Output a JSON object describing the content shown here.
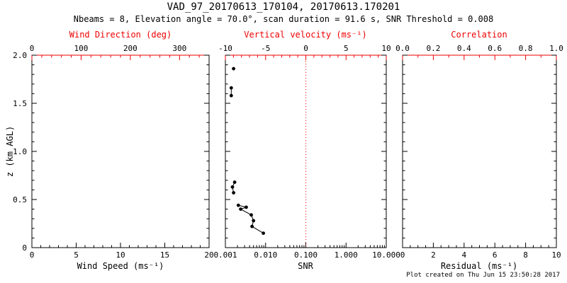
{
  "header": {
    "title": "VAD_97_20170613_170104, 20170613.170201",
    "subtitle": "Nbeams = 8, Elevation angle = 70.0°, scan duration = 91.6 s, SNR Threshold = 0.008"
  },
  "footer": {
    "created": "Plot created on Thu Jun 15 23:50:28 2017"
  },
  "colors": {
    "red": "#ee0000",
    "black": "#000000",
    "background": "#ffffff"
  },
  "chart_data": [
    {
      "type": "scatter",
      "panel": "wind-speed",
      "x_bottom": {
        "label": "Wind Speed (ms⁻¹)",
        "range": [
          0,
          20
        ],
        "minor": 5,
        "ticks": [
          {
            "v": 0,
            "t": "0"
          },
          {
            "v": 5,
            "t": "5"
          },
          {
            "v": 10,
            "t": "10"
          },
          {
            "v": 15,
            "t": "15"
          },
          {
            "v": 20,
            "t": "20"
          }
        ]
      },
      "x_top": {
        "label": "Wind Direction (deg)",
        "range": [
          0,
          360
        ],
        "minor": 5,
        "ticks": [
          {
            "v": 0,
            "t": "0"
          },
          {
            "v": 100,
            "t": "100"
          },
          {
            "v": 200,
            "t": "200"
          },
          {
            "v": 300,
            "t": "300"
          }
        ]
      },
      "y": {
        "label": "z (km AGL)",
        "range": [
          0,
          2
        ],
        "minor": 5,
        "show_labels": true,
        "ticks": [
          {
            "v": 0,
            "t": "0"
          },
          {
            "v": 0.5,
            "t": "0.5"
          },
          {
            "v": 1,
            "t": "1.0"
          },
          {
            "v": 1.5,
            "t": "1.5"
          },
          {
            "v": 2,
            "t": "2.0"
          }
        ]
      },
      "grid": false,
      "segments": []
    },
    {
      "type": "scatter",
      "panel": "snr",
      "x_scale": "log",
      "x_bottom": {
        "label": "SNR",
        "range": [
          0.001,
          10
        ],
        "minor": "log",
        "ticks": [
          {
            "v": 0.001,
            "t": "0.001"
          },
          {
            "v": 0.01,
            "t": "0.010"
          },
          {
            "v": 0.1,
            "t": "0.100"
          },
          {
            "v": 1,
            "t": "1.000"
          },
          {
            "v": 10,
            "t": "10.000"
          }
        ]
      },
      "x_top": {
        "label": "Vertical velocity (ms⁻¹)",
        "range": [
          -10,
          10
        ],
        "minor": 5,
        "ticks": [
          {
            "v": -10,
            "t": "-10"
          },
          {
            "v": -5,
            "t": "-5"
          },
          {
            "v": 0,
            "t": "0"
          },
          {
            "v": 5,
            "t": "5"
          },
          {
            "v": 10,
            "t": "10"
          }
        ]
      },
      "y": {
        "range": [
          0,
          2
        ],
        "minor": 5,
        "show_labels": false,
        "ticks": [
          {
            "v": 0
          },
          {
            "v": 0.5
          },
          {
            "v": 1
          },
          {
            "v": 1.5
          },
          {
            "v": 2
          }
        ]
      },
      "grid": false,
      "reference_line": {
        "x": 0.1,
        "style": "dotted",
        "meaning": "vertical velocity = 0"
      },
      "segments": [
        {
          "points": [
            [
              0.0016,
              1.86
            ]
          ]
        },
        {
          "points": [
            [
              0.0014,
              1.66
            ],
            [
              0.0014,
              1.58
            ]
          ]
        },
        {
          "points": [
            [
              0.0017,
              0.68
            ],
            [
              0.0015,
              0.63
            ],
            [
              0.0016,
              0.57
            ]
          ]
        },
        {
          "points": [
            [
              0.0021,
              0.44
            ],
            [
              0.0033,
              0.42
            ],
            [
              0.0024,
              0.4
            ],
            [
              0.0044,
              0.34
            ],
            [
              0.005,
              0.28
            ],
            [
              0.0046,
              0.22
            ],
            [
              0.0088,
              0.15
            ]
          ]
        }
      ]
    },
    {
      "type": "scatter",
      "panel": "residual",
      "x_bottom": {
        "label": "Residual (ms⁻¹)",
        "range": [
          0,
          10
        ],
        "minor": 4,
        "ticks": [
          {
            "v": 0,
            "t": "0"
          },
          {
            "v": 2,
            "t": "2"
          },
          {
            "v": 4,
            "t": "4"
          },
          {
            "v": 6,
            "t": "6"
          },
          {
            "v": 8,
            "t": "8"
          },
          {
            "v": 10,
            "t": "10"
          }
        ]
      },
      "x_top": {
        "label": "Correlation",
        "range": [
          0,
          1
        ],
        "minor": 2,
        "ticks": [
          {
            "v": 0,
            "t": "0.0"
          },
          {
            "v": 0.2,
            "t": "0.2"
          },
          {
            "v": 0.4,
            "t": "0.4"
          },
          {
            "v": 0.6,
            "t": "0.6"
          },
          {
            "v": 0.8,
            "t": "0.8"
          },
          {
            "v": 1,
            "t": "1.0"
          }
        ]
      },
      "y": {
        "range": [
          0,
          2
        ],
        "minor": 5,
        "show_labels": false,
        "ticks": [
          {
            "v": 0
          },
          {
            "v": 0.5
          },
          {
            "v": 1
          },
          {
            "v": 1.5
          },
          {
            "v": 2
          }
        ]
      },
      "grid": false,
      "segments": []
    }
  ]
}
